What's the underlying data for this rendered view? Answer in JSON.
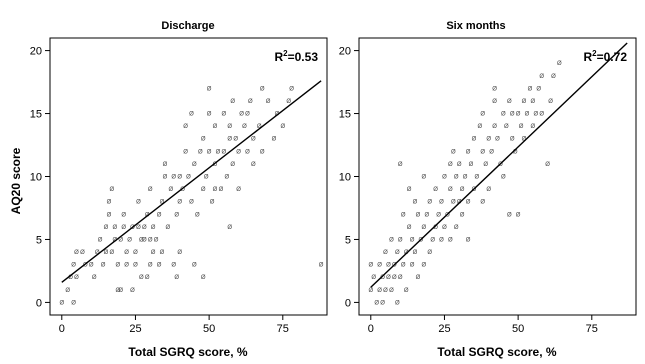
{
  "chart_data": {
    "type": "scatter",
    "ylabel": "AQ20 score",
    "panels": [
      {
        "title": "Discharge",
        "xlabel": "Total SGRQ score, %",
        "xlim": [
          -4,
          90
        ],
        "ylim": [
          -1,
          21
        ],
        "x_ticks": [
          0,
          25,
          50,
          75
        ],
        "y_ticks": [
          0,
          5,
          10,
          15,
          20
        ],
        "r2_prefix": "R",
        "r2_exp": "2",
        "r2_value": "=0.53",
        "fit_line": {
          "x": [
            0,
            88
          ],
          "y": [
            1.6,
            17.6
          ]
        },
        "points": [
          [
            0,
            0
          ],
          [
            2,
            1
          ],
          [
            3,
            2
          ],
          [
            4,
            0
          ],
          [
            4,
            3
          ],
          [
            5,
            2
          ],
          [
            5,
            4
          ],
          [
            7,
            4
          ],
          [
            8,
            3
          ],
          [
            10,
            3
          ],
          [
            11,
            2
          ],
          [
            12,
            4
          ],
          [
            13,
            5
          ],
          [
            14,
            3
          ],
          [
            15,
            4
          ],
          [
            15,
            6
          ],
          [
            16,
            7
          ],
          [
            16,
            8
          ],
          [
            17,
            4
          ],
          [
            17,
            9
          ],
          [
            18,
            5
          ],
          [
            18,
            6
          ],
          [
            19,
            1
          ],
          [
            19,
            3
          ],
          [
            20,
            1
          ],
          [
            20,
            5
          ],
          [
            21,
            6
          ],
          [
            21,
            7
          ],
          [
            22,
            3
          ],
          [
            22,
            4
          ],
          [
            23,
            5
          ],
          [
            24,
            1
          ],
          [
            24,
            6
          ],
          [
            25,
            3
          ],
          [
            25,
            4
          ],
          [
            26,
            6
          ],
          [
            26,
            8
          ],
          [
            27,
            2
          ],
          [
            27,
            5
          ],
          [
            28,
            5
          ],
          [
            28,
            6
          ],
          [
            29,
            2
          ],
          [
            29,
            7
          ],
          [
            30,
            3
          ],
          [
            30,
            5
          ],
          [
            30,
            9
          ],
          [
            31,
            4
          ],
          [
            31,
            6
          ],
          [
            32,
            5
          ],
          [
            33,
            3
          ],
          [
            33,
            7
          ],
          [
            34,
            4
          ],
          [
            34,
            8
          ],
          [
            35,
            10
          ],
          [
            35,
            11
          ],
          [
            36,
            6
          ],
          [
            37,
            9
          ],
          [
            38,
            3
          ],
          [
            38,
            10
          ],
          [
            39,
            2
          ],
          [
            39,
            7
          ],
          [
            40,
            4
          ],
          [
            40,
            8
          ],
          [
            40,
            10
          ],
          [
            41,
            9
          ],
          [
            42,
            12
          ],
          [
            42,
            14
          ],
          [
            43,
            10
          ],
          [
            44,
            8
          ],
          [
            44,
            15
          ],
          [
            45,
            11
          ],
          [
            45,
            3
          ],
          [
            46,
            7
          ],
          [
            47,
            12
          ],
          [
            48,
            13
          ],
          [
            48,
            9
          ],
          [
            49,
            10
          ],
          [
            50,
            12
          ],
          [
            50,
            15
          ],
          [
            50,
            17
          ],
          [
            51,
            8
          ],
          [
            52,
            14
          ],
          [
            52,
            11
          ],
          [
            53,
            12
          ],
          [
            54,
            9
          ],
          [
            55,
            12
          ],
          [
            55,
            15
          ],
          [
            56,
            10
          ],
          [
            57,
            14
          ],
          [
            57,
            13
          ],
          [
            58,
            16
          ],
          [
            58,
            11
          ],
          [
            59,
            13
          ],
          [
            60,
            9
          ],
          [
            60,
            12
          ],
          [
            61,
            15
          ],
          [
            62,
            14
          ],
          [
            63,
            12
          ],
          [
            63,
            15
          ],
          [
            64,
            16
          ],
          [
            65,
            11
          ],
          [
            65,
            13
          ],
          [
            67,
            14
          ],
          [
            68,
            12
          ],
          [
            68,
            17
          ],
          [
            70,
            16
          ],
          [
            72,
            13
          ],
          [
            73,
            15
          ],
          [
            75,
            14
          ],
          [
            77,
            16
          ],
          [
            78,
            17
          ],
          [
            48,
            2
          ],
          [
            52,
            9
          ],
          [
            57,
            6
          ],
          [
            88,
            3
          ]
        ]
      },
      {
        "title": "Six months",
        "xlabel": "Total SGRQ score, %",
        "xlim": [
          -4,
          90
        ],
        "ylim": [
          -1,
          21
        ],
        "x_ticks": [
          0,
          25,
          50,
          75
        ],
        "y_ticks": [
          0,
          5,
          10,
          15,
          20
        ],
        "r2_prefix": "R",
        "r2_exp": "2",
        "r2_value": "=0.72",
        "fit_line": {
          "x": [
            0,
            87
          ],
          "y": [
            1.2,
            20.6
          ]
        },
        "points": [
          [
            0,
            3
          ],
          [
            0,
            1
          ],
          [
            1,
            2
          ],
          [
            2,
            0
          ],
          [
            3,
            1
          ],
          [
            3,
            3
          ],
          [
            4,
            2
          ],
          [
            4,
            0
          ],
          [
            5,
            1
          ],
          [
            5,
            4
          ],
          [
            6,
            2
          ],
          [
            6,
            3
          ],
          [
            7,
            5
          ],
          [
            7,
            1
          ],
          [
            8,
            3
          ],
          [
            8,
            2
          ],
          [
            9,
            4
          ],
          [
            9,
            0
          ],
          [
            10,
            2
          ],
          [
            10,
            5
          ],
          [
            11,
            3
          ],
          [
            11,
            7
          ],
          [
            12,
            4
          ],
          [
            12,
            1
          ],
          [
            13,
            6
          ],
          [
            13,
            9
          ],
          [
            14,
            3
          ],
          [
            14,
            5
          ],
          [
            15,
            8
          ],
          [
            15,
            4
          ],
          [
            16,
            2
          ],
          [
            16,
            7
          ],
          [
            17,
            5
          ],
          [
            18,
            3
          ],
          [
            18,
            6
          ],
          [
            19,
            7
          ],
          [
            20,
            4
          ],
          [
            20,
            8
          ],
          [
            21,
            5
          ],
          [
            22,
            9
          ],
          [
            22,
            6
          ],
          [
            23,
            7
          ],
          [
            24,
            5
          ],
          [
            24,
            8
          ],
          [
            25,
            6
          ],
          [
            25,
            10
          ],
          [
            26,
            7
          ],
          [
            27,
            9
          ],
          [
            27,
            5
          ],
          [
            28,
            8
          ],
          [
            28,
            12
          ],
          [
            29,
            10
          ],
          [
            29,
            6
          ],
          [
            30,
            8
          ],
          [
            30,
            11
          ],
          [
            31,
            9
          ],
          [
            31,
            7
          ],
          [
            32,
            10
          ],
          [
            33,
            8
          ],
          [
            33,
            12
          ],
          [
            34,
            11
          ],
          [
            35,
            9
          ],
          [
            35,
            13
          ],
          [
            36,
            10
          ],
          [
            37,
            14
          ],
          [
            38,
            12
          ],
          [
            38,
            15
          ],
          [
            39,
            11
          ],
          [
            40,
            13
          ],
          [
            40,
            9
          ],
          [
            41,
            12
          ],
          [
            42,
            14
          ],
          [
            42,
            16
          ],
          [
            43,
            13
          ],
          [
            44,
            11
          ],
          [
            45,
            15
          ],
          [
            45,
            10
          ],
          [
            46,
            14
          ],
          [
            47,
            7
          ],
          [
            47,
            16
          ],
          [
            48,
            13
          ],
          [
            48,
            15
          ],
          [
            49,
            12
          ],
          [
            50,
            7
          ],
          [
            50,
            15
          ],
          [
            51,
            14
          ],
          [
            52,
            16
          ],
          [
            52,
            13
          ],
          [
            53,
            15
          ],
          [
            54,
            17
          ],
          [
            55,
            16
          ],
          [
            55,
            14
          ],
          [
            56,
            15
          ],
          [
            57,
            17
          ],
          [
            58,
            18
          ],
          [
            58,
            15
          ],
          [
            60,
            11
          ],
          [
            61,
            16
          ],
          [
            62,
            18
          ],
          [
            64,
            19
          ],
          [
            10,
            11
          ],
          [
            18,
            10
          ],
          [
            38,
            8
          ],
          [
            42,
            17
          ],
          [
            27,
            11
          ],
          [
            33,
            5
          ]
        ]
      }
    ]
  }
}
